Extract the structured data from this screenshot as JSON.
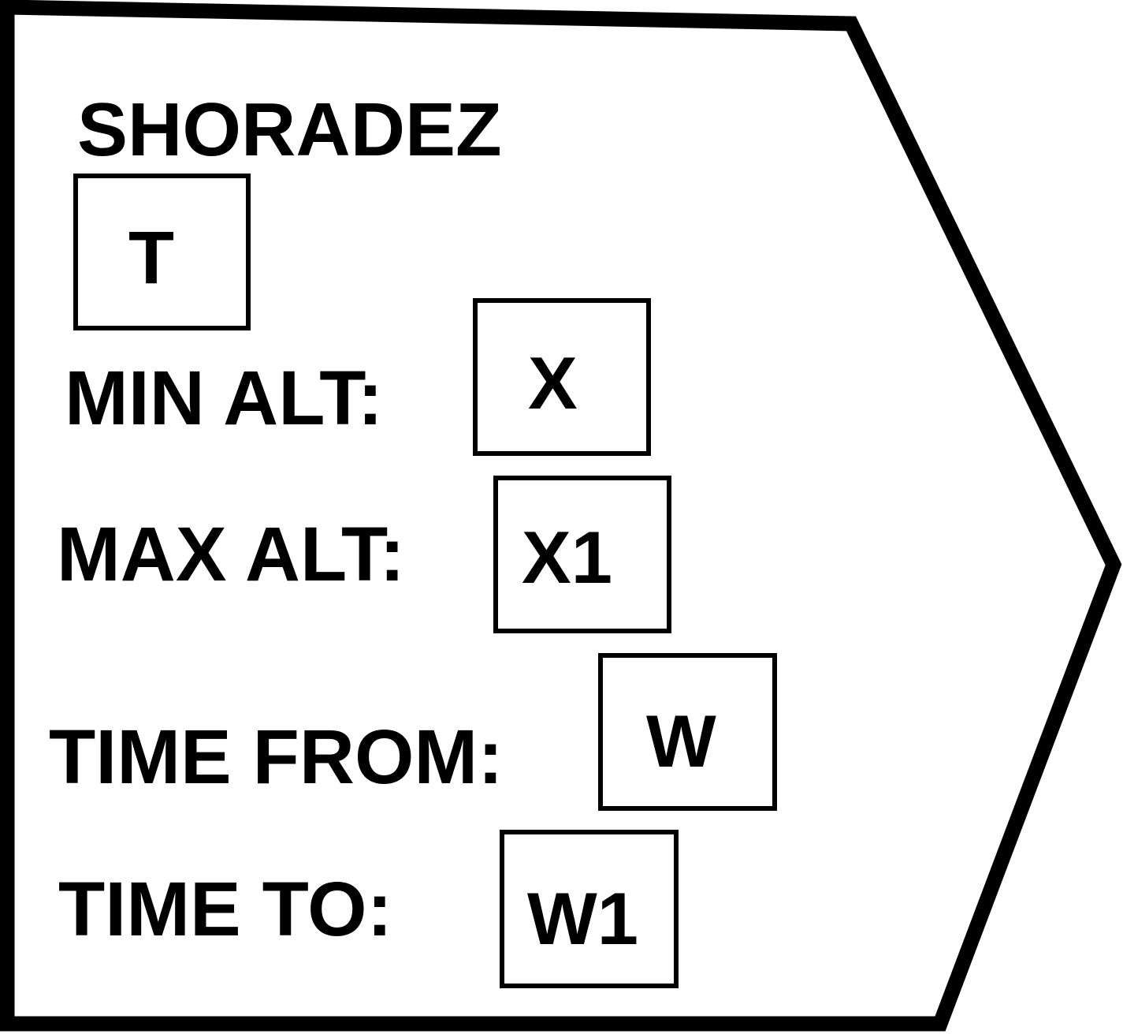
{
  "symbol": {
    "title": "SHORADEZ",
    "type_field": "T",
    "fields": [
      {
        "label": "MIN ALT:",
        "value": "X"
      },
      {
        "label": "MAX ALT:",
        "value": "X1"
      },
      {
        "label": "TIME FROM:",
        "value": "W"
      },
      {
        "label": "TIME TO:",
        "value": "W1"
      }
    ]
  },
  "colors": {
    "stroke": "#000000",
    "background": "#ffffff"
  }
}
